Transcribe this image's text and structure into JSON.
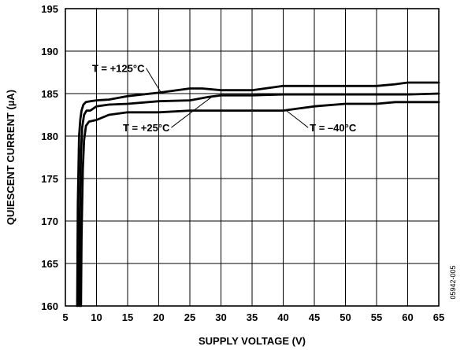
{
  "chart_data": {
    "type": "line",
    "title": "",
    "xlabel": "SUPPLY VOLTAGE (V)",
    "ylabel": "QUIESCENT CURRENT (µA)",
    "xlim": [
      5,
      65
    ],
    "ylim": [
      160,
      195
    ],
    "xticks": [
      "5",
      "10",
      "15",
      "20",
      "25",
      "30",
      "35",
      "40",
      "45",
      "50",
      "55",
      "60",
      "65"
    ],
    "yticks": [
      "160",
      "165",
      "170",
      "175",
      "180",
      "185",
      "190",
      "195"
    ],
    "grid": true,
    "series": [
      {
        "name": "T = +125°C",
        "x": [
          6.9,
          7.0,
          7.2,
          7.4,
          7.6,
          7.9,
          8.3,
          9,
          10,
          12,
          15,
          20,
          25,
          27,
          30,
          35,
          40,
          45,
          50,
          55,
          58,
          60,
          65
        ],
        "y": [
          160,
          172,
          180,
          182,
          183,
          183.7,
          184.0,
          184.1,
          184.2,
          184.3,
          184.7,
          185.1,
          185.6,
          185.6,
          185.4,
          185.4,
          185.9,
          185.9,
          185.9,
          185.9,
          186.1,
          186.3,
          186.3
        ]
      },
      {
        "name": "T = +25°C",
        "x": [
          7.2,
          7.3,
          7.5,
          7.7,
          8.0,
          8.4,
          9,
          10,
          12,
          15,
          20,
          25,
          28,
          30,
          35,
          40,
          45,
          50,
          55,
          60,
          65
        ],
        "y": [
          160,
          170,
          178,
          181,
          182.5,
          183.0,
          183.0,
          183.5,
          183.7,
          183.8,
          184.1,
          184.2,
          184.6,
          184.8,
          184.8,
          184.9,
          184.9,
          184.9,
          184.9,
          184.9,
          185.0
        ]
      },
      {
        "name": "T = −40°C",
        "x": [
          7.5,
          7.6,
          7.8,
          8.0,
          8.3,
          8.8,
          10,
          12,
          15,
          20,
          25,
          30,
          35,
          40,
          45,
          50,
          55,
          58,
          60,
          65
        ],
        "y": [
          160,
          168,
          176,
          179.5,
          181.2,
          181.7,
          181.9,
          182.5,
          182.8,
          182.8,
          183.0,
          183.0,
          183.0,
          183.0,
          183.5,
          183.8,
          183.8,
          184.0,
          184.0,
          184.0
        ]
      }
    ],
    "annotations": [
      {
        "text": "T = +125°C",
        "label_x": 13.5,
        "label_y": 188.0,
        "point_x": 20.3,
        "point_y": 185.2
      },
      {
        "text": "T = +25°C",
        "label_x": 18.0,
        "label_y": 181.0,
        "point_x": 28.5,
        "point_y": 184.6
      },
      {
        "text": "T = –40°C",
        "label_x": 48.0,
        "label_y": 181.0,
        "point_x": 40.5,
        "point_y": 183.0
      }
    ],
    "figure_id": "05942-005"
  }
}
